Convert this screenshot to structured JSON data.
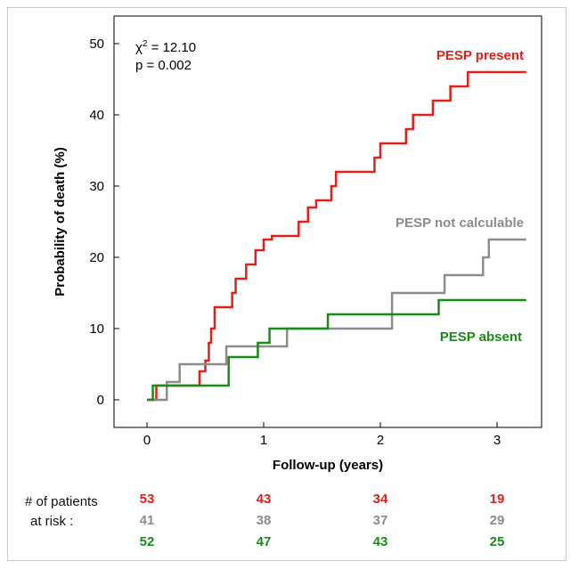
{
  "chart_data": {
    "type": "line",
    "step": true,
    "xlabel": "Follow-up (years)",
    "ylabel": "Probability of death (%)",
    "xlim": [
      0,
      3.3
    ],
    "ylim": [
      -2,
      51
    ],
    "xticks": [
      0,
      1,
      2,
      3
    ],
    "yticks": [
      0,
      10,
      20,
      30,
      40,
      50
    ],
    "grid": false,
    "annotation": {
      "chi_symbol": "χ",
      "chi_sup": "2",
      "chi_value": " = 12.10",
      "p_text": "p = 0.002"
    },
    "series": [
      {
        "name": "PESP present",
        "color": "#e0201b",
        "x": [
          0,
          0.08,
          0.35,
          0.45,
          0.5,
          0.53,
          0.55,
          0.58,
          0.7,
          0.73,
          0.76,
          0.85,
          0.93,
          1.0,
          1.07,
          1.3,
          1.38,
          1.45,
          1.58,
          1.62,
          1.8,
          1.95,
          2.0,
          2.15,
          2.22,
          2.28,
          2.45,
          2.5,
          2.6,
          2.65,
          2.75,
          3.25
        ],
        "y": [
          0,
          2,
          2,
          4,
          5.5,
          8,
          10,
          13,
          13,
          15,
          17,
          19,
          21,
          22.5,
          23,
          25,
          27,
          28,
          30,
          32,
          32,
          34,
          36,
          36,
          38,
          40,
          42,
          42,
          44,
          44,
          46,
          46
        ]
      },
      {
        "name": "PESP not calculable",
        "color": "#8c8c8c",
        "x": [
          0,
          0.17,
          0.21,
          0.28,
          0.68,
          1.0,
          1.2,
          2.07,
          2.1,
          2.55,
          2.85,
          2.88,
          2.93,
          3.25
        ],
        "y": [
          0,
          2.5,
          2.5,
          5,
          7.5,
          7.5,
          10,
          10,
          15,
          17.5,
          17.5,
          20,
          22.5,
          22.5
        ]
      },
      {
        "name": "PESP absent",
        "color": "#1b8a1b",
        "x": [
          0,
          0.05,
          0.24,
          0.7,
          0.95,
          1.05,
          1.55,
          2.1,
          2.5,
          3.25
        ],
        "y": [
          0,
          2,
          2,
          6,
          8,
          10,
          12,
          12,
          14,
          14
        ]
      }
    ],
    "series_labels": [
      {
        "text": "PESP present",
        "color": "#e0201b"
      },
      {
        "text": "PESP not calculable",
        "color": "#8c8c8c"
      },
      {
        "text": "PESP absent",
        "color": "#1b8a1b"
      }
    ]
  },
  "at_risk": {
    "label_line1": "# of patients",
    "label_line2": "at risk :",
    "rows": [
      {
        "color": "#e0201b",
        "values": [
          "53",
          "43",
          "34",
          "19"
        ]
      },
      {
        "color": "#8c8c8c",
        "values": [
          "41",
          "38",
          "37",
          "29"
        ]
      },
      {
        "color": "#1b8a1b",
        "values": [
          "52",
          "47",
          "43",
          "25"
        ]
      }
    ]
  }
}
